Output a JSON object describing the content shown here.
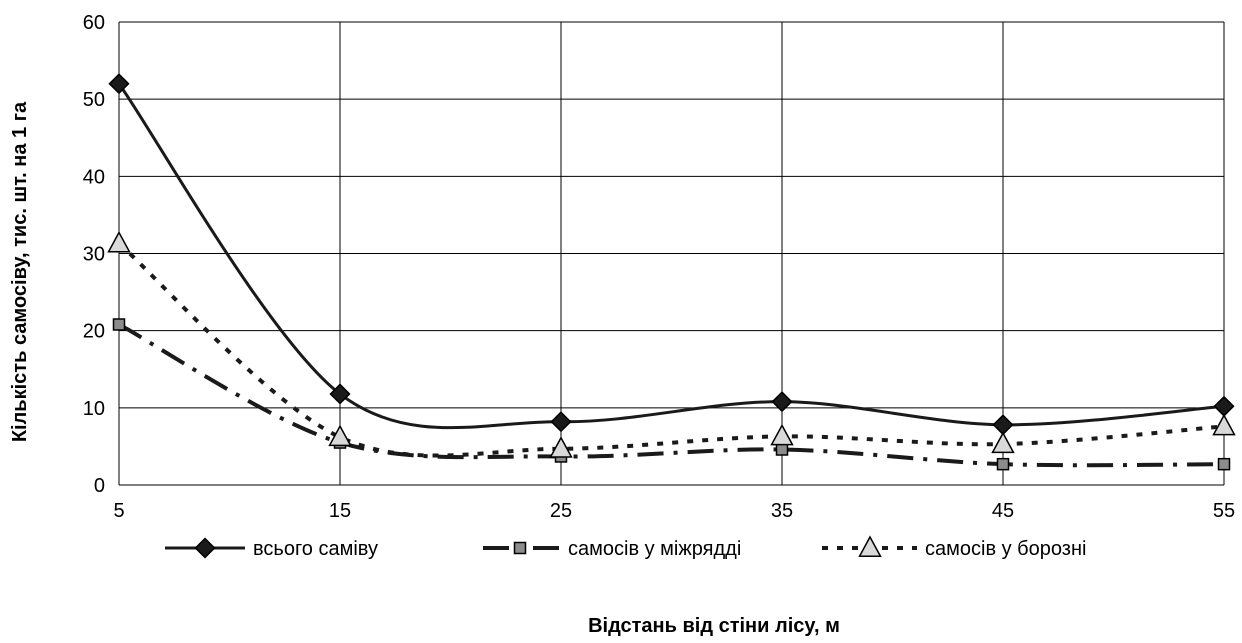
{
  "chart_data": {
    "type": "line",
    "title": "",
    "xlabel": "Відстань від стіни лісу, м",
    "ylabel": "Кількість самосіву, тис. шт. на 1 га",
    "x": [
      5,
      15,
      25,
      35,
      45,
      55
    ],
    "xlim": [
      5,
      55
    ],
    "ylim": [
      0,
      60
    ],
    "yticks": [
      0,
      10,
      20,
      30,
      40,
      50,
      60
    ],
    "grid": true,
    "legend_position": "bottom",
    "series": [
      {
        "name": "всього саміву",
        "values": [
          52,
          11.8,
          8.2,
          10.8,
          7.8,
          10.2
        ],
        "color": "#1a1a1a",
        "marker": "diamond",
        "dash": "solid"
      },
      {
        "name": "самосів у міжрядді",
        "values": [
          20.8,
          5.5,
          3.7,
          4.6,
          2.7,
          2.7
        ],
        "color": "#1a1a1a",
        "marker": "square",
        "dash": "dashdot"
      },
      {
        "name": "самосів у борозні",
        "values": [
          31.3,
          6.2,
          4.7,
          6.3,
          5.3,
          7.6
        ],
        "color": "#1a1a1a",
        "marker": "triangle",
        "dash": "dotted"
      }
    ]
  }
}
